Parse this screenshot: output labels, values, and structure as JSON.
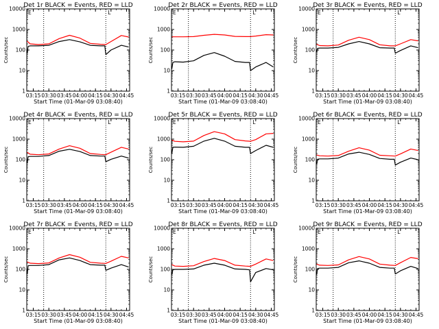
{
  "chart_data": [
    {
      "type": "line",
      "title": "Det 1r BLACK = Events, RED = LLD",
      "xlabel": "Start Time (01-Mar-09 03:08:40)",
      "ylabel": "Counts/sec",
      "yscale": "log",
      "ylim": [
        1,
        10000
      ],
      "ytick_labels": [
        "1",
        "10",
        "100",
        "1000",
        "10000"
      ],
      "x_tick_labels": [
        "03:15",
        "03:30",
        "03:45",
        "04:00",
        "04:15",
        "04:30",
        "04:45"
      ],
      "vlines": [
        "03:25",
        "04:25"
      ],
      "marker_labels": [
        "E",
        "L"
      ],
      "series": [
        {
          "color": "#000000",
          "x": [
            "03:09",
            "03:10",
            "03:12",
            "03:20",
            "03:30",
            "03:40",
            "03:50",
            "04:00",
            "04:10",
            "04:20",
            "04:24",
            "04:25",
            "04:30",
            "04:40",
            "04:47"
          ],
          "values": [
            70,
            150,
            160,
            160,
            170,
            260,
            320,
            250,
            170,
            160,
            160,
            60,
            100,
            170,
            140
          ]
        },
        {
          "color": "#ff0000",
          "x": [
            "03:09",
            "03:12",
            "03:20",
            "03:30",
            "03:40",
            "03:50",
            "04:00",
            "04:10",
            "04:20",
            "04:25",
            "04:30",
            "04:40",
            "04:47"
          ],
          "values": [
            270,
            200,
            185,
            200,
            360,
            520,
            380,
            210,
            190,
            185,
            260,
            510,
            430
          ]
        }
      ]
    },
    {
      "type": "line",
      "title": "Det 2r BLACK = Events, RED = LLD",
      "xlabel": "Start Time (01-Mar-09 03:08:40)",
      "ylabel": "Counts/sec",
      "yscale": "log",
      "ylim": [
        1,
        10000
      ],
      "ytick_labels": [
        "1",
        "10",
        "100",
        "1000",
        "10000"
      ],
      "x_tick_labels": [
        "03:15",
        "03:30",
        "03:45",
        "04:00",
        "04:15",
        "04:30",
        "04:45"
      ],
      "vlines": [
        "03:25",
        "04:25"
      ],
      "marker_labels": [
        "E",
        "L"
      ],
      "series": [
        {
          "color": "#000000",
          "x": [
            "03:09",
            "03:10",
            "03:12",
            "03:20",
            "03:30",
            "03:40",
            "03:50",
            "04:00",
            "04:10",
            "04:20",
            "04:24",
            "04:25",
            "04:30",
            "04:40",
            "04:47"
          ],
          "values": [
            12,
            25,
            27,
            26,
            30,
            55,
            75,
            50,
            28,
            25,
            25,
            10,
            15,
            25,
            15
          ]
        },
        {
          "color": "#ff0000",
          "x": [
            "03:09",
            "03:12",
            "03:20",
            "03:30",
            "03:40",
            "03:50",
            "04:00",
            "04:10",
            "04:20",
            "04:25",
            "04:30",
            "04:40",
            "04:47"
          ],
          "values": [
            440,
            440,
            440,
            450,
            520,
            580,
            540,
            460,
            450,
            450,
            480,
            560,
            540
          ]
        }
      ]
    },
    {
      "type": "line",
      "title": "Det 3r BLACK = Events, RED = LLD",
      "xlabel": "Start Time (01-Mar-09 03:08:40)",
      "ylabel": "Counts/sec",
      "yscale": "log",
      "ylim": [
        1,
        10000
      ],
      "ytick_labels": [
        "1",
        "10",
        "100",
        "1000",
        "10000"
      ],
      "x_tick_labels": [
        "03:15",
        "03:30",
        "03:45",
        "04:00",
        "04:15",
        "04:30",
        "04:45"
      ],
      "vlines": [
        "03:25",
        "04:25"
      ],
      "marker_labels": [
        "E",
        "L"
      ],
      "series": [
        {
          "color": "#000000",
          "x": [
            "03:09",
            "03:10",
            "03:12",
            "03:20",
            "03:30",
            "03:40",
            "03:50",
            "04:00",
            "04:10",
            "04:20",
            "04:24",
            "04:25",
            "04:30",
            "04:40",
            "04:47"
          ],
          "values": [
            80,
            120,
            125,
            125,
            135,
            200,
            260,
            200,
            130,
            125,
            125,
            70,
            95,
            160,
            130
          ]
        },
        {
          "color": "#ff0000",
          "x": [
            "03:09",
            "03:12",
            "03:20",
            "03:30",
            "03:40",
            "03:50",
            "04:00",
            "04:10",
            "04:20",
            "04:25",
            "04:30",
            "04:40",
            "04:47"
          ],
          "values": [
            190,
            165,
            160,
            175,
            300,
            420,
            320,
            180,
            160,
            160,
            200,
            320,
            280
          ]
        }
      ]
    },
    {
      "type": "line",
      "title": "Det 4r BLACK = Events, RED = LLD",
      "xlabel": "Start Time (01-Mar-09 03:08:40)",
      "ylabel": "Counts/sec",
      "yscale": "log",
      "ylim": [
        1,
        10000
      ],
      "ytick_labels": [
        "1",
        "10",
        "100",
        "1000",
        "10000"
      ],
      "x_tick_labels": [
        "03:15",
        "03:30",
        "03:45",
        "04:00",
        "04:15",
        "04:30",
        "04:45"
      ],
      "vlines": [
        "03:25",
        "04:25"
      ],
      "marker_labels": [
        "E",
        "L"
      ],
      "series": [
        {
          "color": "#000000",
          "x": [
            "03:09",
            "03:10",
            "03:12",
            "03:20",
            "03:30",
            "03:40",
            "03:50",
            "04:00",
            "04:10",
            "04:20",
            "04:24",
            "04:25",
            "04:30",
            "04:40",
            "04:47"
          ],
          "values": [
            70,
            140,
            145,
            145,
            160,
            260,
            320,
            250,
            160,
            150,
            150,
            80,
            105,
            150,
            120
          ]
        },
        {
          "color": "#ff0000",
          "x": [
            "03:09",
            "03:12",
            "03:20",
            "03:30",
            "03:40",
            "03:50",
            "04:00",
            "04:10",
            "04:20",
            "04:25",
            "04:30",
            "04:40",
            "04:47"
          ],
          "values": [
            230,
            185,
            175,
            190,
            330,
            480,
            360,
            200,
            180,
            175,
            230,
            400,
            330
          ]
        }
      ]
    },
    {
      "type": "line",
      "title": "Det 5r BLACK = Events, RED = LLD",
      "xlabel": "Start Time (01-Mar-09 03:08:40)",
      "ylabel": "Counts/sec",
      "yscale": "log",
      "ylim": [
        1,
        10000
      ],
      "ytick_labels": [
        "1",
        "10",
        "100",
        "1000",
        "10000"
      ],
      "x_tick_labels": [
        "03:15",
        "03:30",
        "03:45",
        "04:00",
        "04:15",
        "04:30",
        "04:45"
      ],
      "vlines": [
        "03:25",
        "04:25"
      ],
      "marker_labels": [
        "E",
        "L"
      ],
      "series": [
        {
          "color": "#000000",
          "x": [
            "03:09",
            "03:10",
            "03:12",
            "03:20",
            "03:30",
            "03:40",
            "03:50",
            "04:00",
            "04:10",
            "04:20",
            "04:24",
            "04:25",
            "04:30",
            "04:40",
            "04:47"
          ],
          "values": [
            200,
            400,
            410,
            400,
            450,
            800,
            1100,
            800,
            450,
            400,
            400,
            200,
            280,
            500,
            400
          ]
        },
        {
          "color": "#ff0000",
          "x": [
            "03:09",
            "03:12",
            "03:20",
            "03:30",
            "03:40",
            "03:50",
            "04:00",
            "04:10",
            "04:20",
            "04:25",
            "04:30",
            "04:40",
            "04:47"
          ],
          "values": [
            900,
            780,
            740,
            800,
            1500,
            2300,
            1800,
            950,
            820,
            790,
            950,
            1800,
            1900
          ]
        }
      ]
    },
    {
      "type": "line",
      "title": "Det 6r BLACK = Events, RED = LLD",
      "xlabel": "Start Time (01-Mar-09 03:08:40)",
      "ylabel": "Counts/sec",
      "yscale": "log",
      "ylim": [
        1,
        10000
      ],
      "ytick_labels": [
        "1",
        "10",
        "100",
        "1000",
        "10000"
      ],
      "x_tick_labels": [
        "03:15",
        "03:30",
        "03:45",
        "04:00",
        "04:15",
        "04:30",
        "04:45"
      ],
      "vlines": [
        "03:25",
        "04:25"
      ],
      "marker_labels": [
        "E",
        "L"
      ],
      "series": [
        {
          "color": "#000000",
          "x": [
            "03:09",
            "03:10",
            "03:12",
            "03:20",
            "03:30",
            "03:40",
            "03:50",
            "04:00",
            "04:10",
            "04:20",
            "04:24",
            "04:25",
            "04:30",
            "04:40",
            "04:47"
          ],
          "values": [
            60,
            105,
            110,
            110,
            120,
            190,
            230,
            180,
            115,
            105,
            105,
            55,
            75,
            120,
            100
          ]
        },
        {
          "color": "#ff0000",
          "x": [
            "03:09",
            "03:12",
            "03:20",
            "03:30",
            "03:40",
            "03:50",
            "04:00",
            "04:10",
            "04:20",
            "04:25",
            "04:30",
            "04:40",
            "04:47"
          ],
          "values": [
            170,
            155,
            150,
            160,
            260,
            380,
            290,
            165,
            155,
            150,
            190,
            330,
            280
          ]
        }
      ]
    },
    {
      "type": "line",
      "title": "Det 7r BLACK = Events, RED = LLD",
      "xlabel": "Start Time (01-Mar-09 03:08:40)",
      "ylabel": "Counts/sec",
      "yscale": "log",
      "ylim": [
        1,
        10000
      ],
      "ytick_labels": [
        "1",
        "10",
        "100",
        "1000",
        "10000"
      ],
      "x_tick_labels": [
        "03:15",
        "03:30",
        "03:45",
        "04:00",
        "04:15",
        "04:30",
        "04:45"
      ],
      "vlines": [
        "03:25",
        "04:25"
      ],
      "marker_labels": [
        "E",
        "L"
      ],
      "series": [
        {
          "color": "#000000",
          "x": [
            "03:09",
            "03:10",
            "03:12",
            "03:20",
            "03:30",
            "03:40",
            "03:50",
            "04:00",
            "04:10",
            "04:20",
            "04:24",
            "04:25",
            "04:30",
            "04:40",
            "04:47"
          ],
          "values": [
            60,
            150,
            155,
            155,
            170,
            290,
            360,
            270,
            170,
            160,
            160,
            90,
            115,
            170,
            130
          ]
        },
        {
          "color": "#ff0000",
          "x": [
            "03:09",
            "03:12",
            "03:20",
            "03:30",
            "03:40",
            "03:50",
            "04:00",
            "04:10",
            "04:20",
            "04:25",
            "04:30",
            "04:40",
            "04:47"
          ],
          "values": [
            230,
            200,
            190,
            205,
            360,
            520,
            390,
            220,
            200,
            195,
            250,
            430,
            360
          ]
        }
      ]
    },
    {
      "type": "line",
      "title": "Det 8r BLACK = Events, RED = LLD",
      "xlabel": "Start Time (01-Mar-09 03:08:40)",
      "ylabel": "Counts/sec",
      "yscale": "log",
      "ylim": [
        1,
        10000
      ],
      "ytick_labels": [
        "1",
        "10",
        "100",
        "1000",
        "10000"
      ],
      "x_tick_labels": [
        "03:15",
        "03:30",
        "03:45",
        "04:00",
        "04:15",
        "04:30",
        "04:45"
      ],
      "vlines": [
        "03:25",
        "04:25"
      ],
      "marker_labels": [
        "E",
        "L"
      ],
      "series": [
        {
          "color": "#000000",
          "x": [
            "03:09",
            "03:10",
            "03:12",
            "03:20",
            "03:30",
            "03:40",
            "03:50",
            "04:00",
            "04:10",
            "04:20",
            "04:24",
            "04:25",
            "04:30",
            "04:40",
            "04:47"
          ],
          "values": [
            55,
            95,
            100,
            100,
            105,
            160,
            200,
            160,
            105,
            100,
            95,
            25,
            70,
            110,
            95
          ]
        },
        {
          "color": "#ff0000",
          "x": [
            "03:09",
            "03:12",
            "03:20",
            "03:30",
            "03:40",
            "03:50",
            "04:00",
            "04:10",
            "04:20",
            "04:25",
            "04:30",
            "04:40",
            "04:47"
          ],
          "values": [
            170,
            145,
            140,
            150,
            240,
            340,
            270,
            160,
            145,
            140,
            180,
            320,
            270
          ]
        }
      ]
    },
    {
      "type": "line",
      "title": "Det 9r BLACK = Events, RED = LLD",
      "xlabel": "Start Time (01-Mar-09 03:08:40)",
      "ylabel": "Counts/sec",
      "yscale": "log",
      "ylim": [
        1,
        10000
      ],
      "ytick_labels": [
        "1",
        "10",
        "100",
        "1000",
        "10000"
      ],
      "x_tick_labels": [
        "03:15",
        "03:30",
        "03:45",
        "04:00",
        "04:15",
        "04:30",
        "04:45"
      ],
      "vlines": [
        "03:25",
        "04:25"
      ],
      "marker_labels": [
        "E",
        "L"
      ],
      "series": [
        {
          "color": "#000000",
          "x": [
            "03:09",
            "03:10",
            "03:12",
            "03:20",
            "03:30",
            "03:40",
            "03:50",
            "04:00",
            "04:10",
            "04:20",
            "04:24",
            "04:25",
            "04:30",
            "04:40",
            "04:47"
          ],
          "values": [
            55,
            110,
            115,
            115,
            125,
            210,
            260,
            200,
            125,
            115,
            115,
            60,
            85,
            140,
            110
          ]
        },
        {
          "color": "#ff0000",
          "x": [
            "03:09",
            "03:12",
            "03:20",
            "03:30",
            "03:40",
            "03:50",
            "04:00",
            "04:10",
            "04:20",
            "04:25",
            "04:30",
            "04:40",
            "04:47"
          ],
          "values": [
            180,
            160,
            155,
            165,
            290,
            420,
            320,
            180,
            160,
            155,
            210,
            380,
            330
          ]
        }
      ]
    }
  ]
}
